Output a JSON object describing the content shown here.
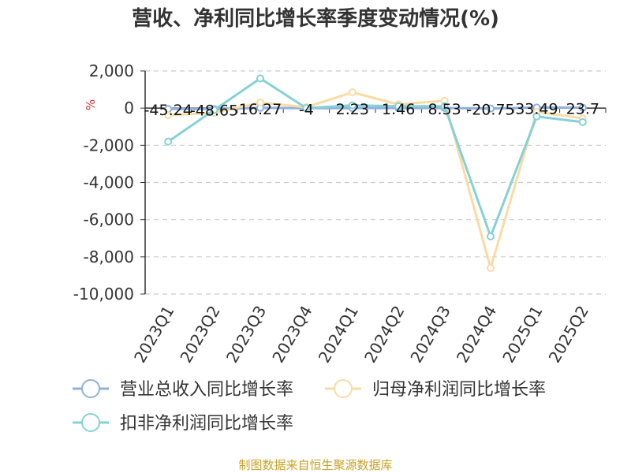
{
  "chart_data": {
    "type": "line",
    "title": "营收、净利同比增长率季度变动情况(%)",
    "ylabel": "%",
    "ylim": [
      -10000,
      2000
    ],
    "yticks": [
      "2,000",
      "0",
      "-2,000",
      "-4,000",
      "-6,000",
      "-8,000",
      "-10,000"
    ],
    "categories": [
      "2023Q1",
      "2023Q2",
      "2023Q3",
      "2023Q4",
      "2024Q1",
      "2024Q2",
      "2024Q3",
      "2024Q4",
      "2025Q1",
      "2025Q2"
    ],
    "series": [
      {
        "name": "营业总收入同比增长率",
        "color": "#8fb0dc",
        "values": [
          -45.24,
          -48.65,
          16.27,
          -4,
          2.23,
          1.46,
          8.53,
          -20.75,
          33.49,
          23.7
        ],
        "labels": [
          "-45.24",
          "-48.65",
          "16.27",
          "-4",
          "2.23",
          "1.46",
          "8.53",
          "-20.75",
          "33.49",
          "23.7"
        ]
      },
      {
        "name": "归母净利润同比增长率",
        "color": "#f9dba3",
        "values": [
          -380,
          -250,
          300,
          50,
          850,
          200,
          400,
          -8600,
          -200,
          -550
        ],
        "labels": []
      },
      {
        "name": "扣非净利润同比增长率",
        "color": "#86d1d6",
        "values": [
          -1800,
          -100,
          1600,
          0,
          150,
          100,
          100,
          -6900,
          -450,
          -750
        ],
        "labels": []
      }
    ],
    "grid": true,
    "legend_position": "bottom"
  },
  "footer": {
    "source": "制图数据来自恒生聚源数据库"
  }
}
